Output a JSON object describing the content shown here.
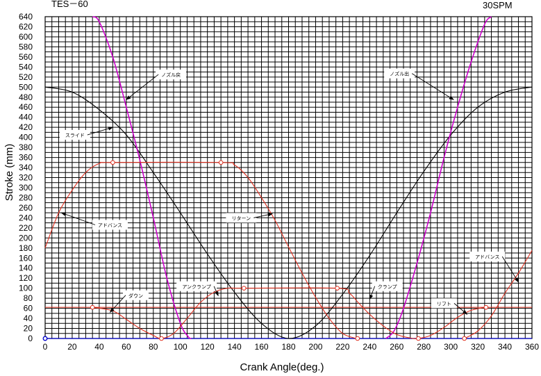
{
  "header": {
    "left_title": "TES－60",
    "right_title": "30SPM"
  },
  "chart_data": {
    "type": "line",
    "xlabel": "Crank Angle(deg.)",
    "ylabel": "Stroke (mm)",
    "xlim": [
      0,
      360
    ],
    "ylim": [
      0,
      640
    ],
    "x_ticks": [
      0,
      20,
      40,
      60,
      80,
      100,
      120,
      140,
      160,
      180,
      200,
      220,
      240,
      260,
      280,
      300,
      320,
      340,
      360
    ],
    "y_ticks": [
      0,
      20,
      40,
      60,
      80,
      100,
      120,
      140,
      160,
      180,
      200,
      220,
      240,
      260,
      280,
      300,
      320,
      340,
      360,
      380,
      400,
      420,
      440,
      460,
      480,
      500,
      520,
      540,
      560,
      580,
      600,
      620,
      640
    ],
    "grid": true,
    "legend": "none",
    "colors": {
      "slide": "#000000",
      "nozzle": "#cc00cc",
      "red": "#e03020",
      "ref": "#e03020",
      "zero": "#0000cc"
    },
    "series": [
      {
        "key": "slide",
        "color": "#000000",
        "x": [
          0,
          20,
          40,
          60,
          80,
          100,
          120,
          140,
          160,
          180,
          200,
          220,
          240,
          260,
          280,
          300,
          320,
          340,
          360
        ],
        "y": [
          500,
          490,
          455,
          405,
          330,
          250,
          168,
          92,
          30,
          0,
          25,
          88,
          165,
          250,
          332,
          405,
          460,
          490,
          500
        ]
      },
      {
        "key": "nozzle",
        "color": "#cc00cc",
        "x": [
          35,
          40,
          50,
          60,
          70,
          80,
          90,
          100,
          106,
          108
        ],
        "y": [
          640,
          630,
          560,
          460,
          355,
          240,
          120,
          30,
          3,
          0
        ]
      },
      {
        "key": "nozzle",
        "color": "#cc00cc",
        "x": [
          252,
          258,
          265,
          275,
          285,
          295,
          305,
          315,
          325,
          330
        ],
        "y": [
          0,
          15,
          60,
          150,
          250,
          360,
          460,
          550,
          625,
          640
        ]
      },
      {
        "key": "red",
        "color": "#e03020",
        "x": [
          0,
          10,
          20,
          30,
          40,
          50,
          130,
          140,
          150,
          160,
          170,
          180,
          190,
          200,
          210,
          220,
          230
        ],
        "y": [
          180,
          250,
          295,
          330,
          348,
          350,
          350,
          345,
          320,
          280,
          235,
          182,
          130,
          82,
          40,
          10,
          0
        ]
      },
      {
        "key": "red",
        "color": "#e03020",
        "x": [
          35,
          50,
          60,
          70,
          80,
          86,
          95,
          105,
          115,
          125,
          135,
          147,
          216,
          225,
          232,
          240,
          250,
          260,
          270,
          276,
          285,
          295,
          305,
          315,
          326
        ],
        "y": [
          62,
          55,
          38,
          20,
          6,
          0,
          10,
          40,
          72,
          92,
          100,
          100,
          100,
          90,
          70,
          48,
          25,
          8,
          1,
          0,
          6,
          22,
          42,
          56,
          62
        ]
      },
      {
        "key": "red",
        "color": "#e03020",
        "x": [
          310,
          320,
          330,
          340,
          350,
          360
        ],
        "y": [
          0,
          15,
          45,
          90,
          130,
          175
        ]
      }
    ],
    "reference_lines": [
      {
        "y": 62,
        "color": "#e03020"
      }
    ],
    "markers": [
      {
        "x": 50,
        "y": 350
      },
      {
        "x": 130,
        "y": 350
      },
      {
        "x": 35,
        "y": 62
      },
      {
        "x": 86,
        "y": 0
      },
      {
        "x": 147,
        "y": 100
      },
      {
        "x": 216,
        "y": 100
      },
      {
        "x": 231,
        "y": 0
      },
      {
        "x": 276,
        "y": 0
      },
      {
        "x": 310,
        "y": 0
      },
      {
        "x": 326,
        "y": 62
      }
    ],
    "origin_marker": {
      "x": 0,
      "y": 0
    },
    "annotations": [
      {
        "text": "ノズル戻",
        "label_x": 93,
        "label_y": 525,
        "arrow_x": 60,
        "arrow_y": 475
      },
      {
        "text": "スライド",
        "label_x": 22,
        "label_y": 405,
        "arrow_x": 50,
        "arrow_y": 420
      },
      {
        "text": "アドバンス",
        "label_x": 48,
        "label_y": 226,
        "arrow_x": 12,
        "arrow_y": 250
      },
      {
        "text": "アンクランプ",
        "label_x": 112,
        "label_y": 104,
        "arrow_x": 128,
        "arrow_y": 85
      },
      {
        "text": "ダウン",
        "label_x": 67,
        "label_y": 86,
        "arrow_x": 48,
        "arrow_y": 52
      },
      {
        "text": "リターン",
        "label_x": 145,
        "label_y": 240,
        "arrow_x": 168,
        "arrow_y": 248
      },
      {
        "text": "ノズル出",
        "label_x": 262,
        "label_y": 527,
        "arrow_x": 302,
        "arrow_y": 475
      },
      {
        "text": "クランプ",
        "label_x": 253,
        "label_y": 104,
        "arrow_x": 240,
        "arrow_y": 78
      },
      {
        "text": "リフト",
        "label_x": 295,
        "label_y": 70,
        "arrow_x": 312,
        "arrow_y": 48
      },
      {
        "text": "アドバンス",
        "label_x": 327,
        "label_y": 163,
        "arrow_x": 350,
        "arrow_y": 112
      }
    ]
  }
}
